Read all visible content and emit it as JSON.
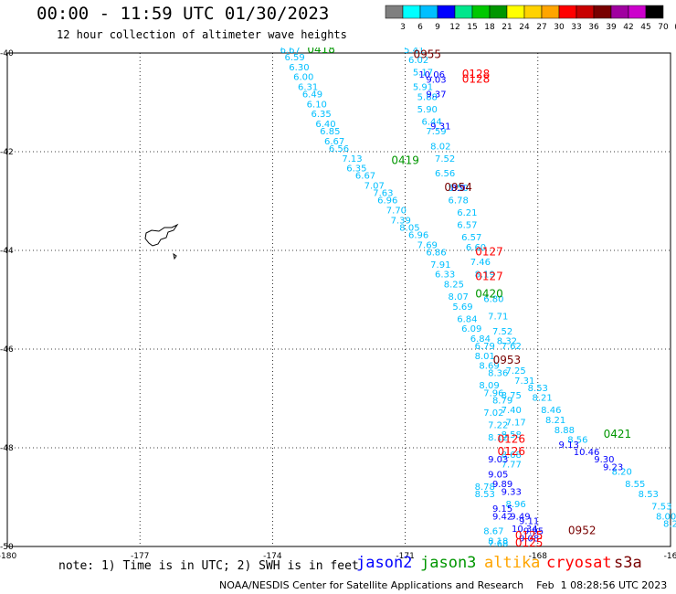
{
  "title": "00:00 - 11:59 UTC 01/30/2023",
  "subtitle": "12 hour collection of altimeter wave heights",
  "note": "note: 1) Time is in UTC; 2) SWH is in feet",
  "footer": "NOAA/NESDIS Center for Satellite Applications and Research    Feb  1 08:28:56 UTC 2023",
  "colorbar": {
    "ticks": [
      "3",
      "6",
      "9",
      "12",
      "15",
      "18",
      "21",
      "24",
      "27",
      "30",
      "33",
      "36",
      "39",
      "42",
      "45",
      "70",
      "(ft)"
    ],
    "colors": [
      "#7f7f7f",
      "#00ffff",
      "#00bfff",
      "#0000ff",
      "#00e68c",
      "#00c800",
      "#009600",
      "#ffff00",
      "#ffd200",
      "#ffa500",
      "#ff0000",
      "#c80000",
      "#780000",
      "#a000a0",
      "#cc00cc",
      "#000000"
    ]
  },
  "legend": [
    {
      "label": "jason2",
      "color": "#0000ff"
    },
    {
      "label": "jason3",
      "color": "#009600"
    },
    {
      "label": "altika",
      "color": "#ffa500"
    },
    {
      "label": "cryosat",
      "color": "#ff0000"
    },
    {
      "label": "s3a",
      "color": "#780000"
    }
  ],
  "chart_data": {
    "type": "scatter",
    "title": "00:00 - 11:59 UTC 01/30/2023",
    "subtitle": "12 hour collection of altimeter wave heights",
    "x_ticks": [
      "-180",
      "-177",
      "-174",
      "-171",
      "-168",
      "-16"
    ],
    "y_ticks": [
      "-40",
      "-42",
      "-44",
      "-46",
      "-48",
      "-50"
    ],
    "xlim": [
      -180,
      -165
    ],
    "ylim": [
      -50,
      -40
    ],
    "grid": true,
    "time_labels": [
      {
        "text": "0418",
        "lon": -172.9,
        "lat": -40.0,
        "color": "#009600"
      },
      {
        "text": "0955",
        "lon": -170.5,
        "lat": -40.1,
        "color": "#780000"
      },
      {
        "text": "0128",
        "lon": -169.4,
        "lat": -40.5,
        "color": "#ff0000"
      },
      {
        "text": "0128",
        "lon": -169.4,
        "lat": -40.6,
        "color": "#ff0000"
      },
      {
        "text": "0419",
        "lon": -171.0,
        "lat": -42.25,
        "color": "#009600"
      },
      {
        "text": "0954",
        "lon": -169.8,
        "lat": -42.8,
        "color": "#780000"
      },
      {
        "text": "0127",
        "lon": -169.1,
        "lat": -44.1,
        "color": "#ff0000"
      },
      {
        "text": "0127",
        "lon": -169.1,
        "lat": -44.6,
        "color": "#ff0000"
      },
      {
        "text": "0420",
        "lon": -169.1,
        "lat": -44.95,
        "color": "#009600"
      },
      {
        "text": "0953",
        "lon": -168.7,
        "lat": -46.3,
        "color": "#780000"
      },
      {
        "text": "0421",
        "lon": -166.2,
        "lat": -47.8,
        "color": "#009600"
      },
      {
        "text": "0126",
        "lon": -168.6,
        "lat": -47.9,
        "color": "#ff0000"
      },
      {
        "text": "0126",
        "lon": -168.6,
        "lat": -48.15,
        "color": "#ff0000"
      },
      {
        "text": "0952",
        "lon": -167.0,
        "lat": -49.75,
        "color": "#780000"
      },
      {
        "text": "0125",
        "lon": -168.2,
        "lat": -49.85,
        "color": "#ff0000"
      },
      {
        "text": "0125",
        "lon": -168.2,
        "lat": -50.0,
        "color": "#ff0000"
      }
    ],
    "series": [
      {
        "name": "jason3",
        "color": "#00bfff",
        "points": [
          {
            "lon": -173.6,
            "lat": -40.0,
            "v": "6.67"
          },
          {
            "lon": -173.5,
            "lat": -40.15,
            "v": "6.59"
          },
          {
            "lon": -173.4,
            "lat": -40.35,
            "v": "6.30"
          },
          {
            "lon": -173.3,
            "lat": -40.55,
            "v": "6.00"
          },
          {
            "lon": -173.2,
            "lat": -40.75,
            "v": "6.31"
          },
          {
            "lon": -173.1,
            "lat": -40.9,
            "v": "6.49"
          },
          {
            "lon": -173.0,
            "lat": -41.1,
            "v": "6.10"
          },
          {
            "lon": -172.9,
            "lat": -41.3,
            "v": "6.35"
          },
          {
            "lon": -172.8,
            "lat": -41.5,
            "v": "6.40"
          },
          {
            "lon": -172.7,
            "lat": -41.65,
            "v": "6.85"
          },
          {
            "lon": -172.6,
            "lat": -41.85,
            "v": "6.67"
          },
          {
            "lon": -172.5,
            "lat": -42.0,
            "v": "6.56"
          },
          {
            "lon": -172.2,
            "lat": -42.2,
            "v": "7.13"
          },
          {
            "lon": -172.1,
            "lat": -42.4,
            "v": "6.35"
          },
          {
            "lon": -171.9,
            "lat": -42.55,
            "v": "6.67"
          },
          {
            "lon": -171.7,
            "lat": -42.75,
            "v": "7.07"
          },
          {
            "lon": -171.5,
            "lat": -42.9,
            "v": "7.63"
          },
          {
            "lon": -171.4,
            "lat": -43.05,
            "v": "6.96"
          },
          {
            "lon": -171.2,
            "lat": -43.25,
            "v": "7.70"
          },
          {
            "lon": -171.1,
            "lat": -43.45,
            "v": "7.39"
          },
          {
            "lon": -170.9,
            "lat": -43.6,
            "v": "8.05"
          },
          {
            "lon": -170.7,
            "lat": -43.75,
            "v": "6.96"
          },
          {
            "lon": -170.5,
            "lat": -43.95,
            "v": "7.69"
          },
          {
            "lon": -170.3,
            "lat": -44.1,
            "v": "6.86"
          },
          {
            "lon": -170.2,
            "lat": -44.35,
            "v": "7.91"
          },
          {
            "lon": -170.1,
            "lat": -44.55,
            "v": "6.33"
          },
          {
            "lon": -169.9,
            "lat": -44.75,
            "v": "8.25"
          },
          {
            "lon": -169.8,
            "lat": -45.0,
            "v": "8.07"
          },
          {
            "lon": -169.7,
            "lat": -45.2,
            "v": "5.69"
          },
          {
            "lon": -169.6,
            "lat": -45.45,
            "v": "6.84"
          },
          {
            "lon": -169.5,
            "lat": -45.65,
            "v": "6.09"
          },
          {
            "lon": -169.3,
            "lat": -45.85,
            "v": "6.84"
          },
          {
            "lon": -169.2,
            "lat": -46.0,
            "v": "6.79"
          },
          {
            "lon": -169.2,
            "lat": -46.2,
            "v": "8.01"
          },
          {
            "lon": -169.1,
            "lat": -46.4,
            "v": "8.69"
          },
          {
            "lon": -168.9,
            "lat": -46.55,
            "v": "8.36"
          },
          {
            "lon": -169.1,
            "lat": -46.8,
            "v": "8.09"
          },
          {
            "lon": -169.0,
            "lat": -46.95,
            "v": "7.96"
          },
          {
            "lon": -168.8,
            "lat": -47.1,
            "v": "8.79"
          },
          {
            "lon": -169.0,
            "lat": -47.35,
            "v": "7.02"
          },
          {
            "lon": -168.9,
            "lat": -47.6,
            "v": "7.22"
          },
          {
            "lon": -168.9,
            "lat": -47.85,
            "v": "8.12"
          }
        ]
      },
      {
        "name": "cryosat",
        "color": "#00bfff",
        "points": [
          {
            "lon": -170.8,
            "lat": -40.0,
            "v": "5.41"
          },
          {
            "lon": -170.7,
            "lat": -40.2,
            "v": "6.02"
          },
          {
            "lon": -170.6,
            "lat": -40.45,
            "v": "5.17"
          },
          {
            "lon": -170.6,
            "lat": -40.75,
            "v": "5.91"
          },
          {
            "lon": -170.5,
            "lat": -40.95,
            "v": "5.88"
          },
          {
            "lon": -170.5,
            "lat": -41.2,
            "v": "5.90"
          },
          {
            "lon": -170.4,
            "lat": -41.45,
            "v": "6.44"
          },
          {
            "lon": -170.3,
            "lat": -41.65,
            "v": "7.59"
          },
          {
            "lon": -170.2,
            "lat": -41.95,
            "v": "8.02"
          },
          {
            "lon": -170.1,
            "lat": -42.2,
            "v": "7.52"
          },
          {
            "lon": -170.1,
            "lat": -42.5,
            "v": "6.56"
          },
          {
            "lon": -169.8,
            "lat": -42.8,
            "v": "5.50"
          },
          {
            "lon": -169.8,
            "lat": -43.05,
            "v": "6.78"
          },
          {
            "lon": -169.6,
            "lat": -43.3,
            "v": "6.21"
          },
          {
            "lon": -169.6,
            "lat": -43.55,
            "v": "6.57"
          },
          {
            "lon": -169.5,
            "lat": -43.8,
            "v": "6.57"
          },
          {
            "lon": -169.4,
            "lat": -44.0,
            "v": "6.60"
          },
          {
            "lon": -169.3,
            "lat": -44.3,
            "v": "7.46"
          },
          {
            "lon": -169.2,
            "lat": -44.55,
            "v": "8.19"
          },
          {
            "lon": -169.0,
            "lat": -45.05,
            "v": "6.80"
          },
          {
            "lon": -168.9,
            "lat": -45.4,
            "v": "7.71"
          },
          {
            "lon": -168.8,
            "lat": -45.7,
            "v": "7.52"
          },
          {
            "lon": -168.7,
            "lat": -45.9,
            "v": "8.32"
          },
          {
            "lon": -168.6,
            "lat": -46.0,
            "v": "7.62"
          },
          {
            "lon": -168.5,
            "lat": -46.5,
            "v": "7.25"
          },
          {
            "lon": -168.3,
            "lat": -46.7,
            "v": "7.31"
          },
          {
            "lon": -168.0,
            "lat": -46.85,
            "v": "8.53"
          },
          {
            "lon": -167.9,
            "lat": -47.05,
            "v": "8.21"
          },
          {
            "lon": -167.7,
            "lat": -47.3,
            "v": "8.46"
          },
          {
            "lon": -167.6,
            "lat": -47.5,
            "v": "8.21"
          },
          {
            "lon": -167.4,
            "lat": -47.7,
            "v": "8.88"
          },
          {
            "lon": -167.1,
            "lat": -47.9,
            "v": "8.56"
          },
          {
            "lon": -168.6,
            "lat": -47.0,
            "v": "8.75"
          },
          {
            "lon": -168.6,
            "lat": -47.3,
            "v": "7.40"
          },
          {
            "lon": -168.5,
            "lat": -47.55,
            "v": "7.17"
          },
          {
            "lon": -168.6,
            "lat": -47.8,
            "v": "8.58"
          },
          {
            "lon": -168.6,
            "lat": -48.2,
            "v": "8.68"
          },
          {
            "lon": -168.6,
            "lat": -48.4,
            "v": "7.77"
          },
          {
            "lon": -168.5,
            "lat": -49.2,
            "v": "8.96"
          },
          {
            "lon": -169.2,
            "lat": -49.0,
            "v": "8.53"
          },
          {
            "lon": -169.2,
            "lat": -48.85,
            "v": "8.78"
          },
          {
            "lon": -169.0,
            "lat": -49.75,
            "v": "8.67"
          },
          {
            "lon": -168.9,
            "lat": -49.95,
            "v": "8.18"
          },
          {
            "lon": -168.9,
            "lat": -50.0,
            "v": "7.68"
          },
          {
            "lon": -166.1,
            "lat": -48.55,
            "v": "8.20"
          },
          {
            "lon": -165.8,
            "lat": -48.8,
            "v": "8.55"
          },
          {
            "lon": -165.5,
            "lat": -49.0,
            "v": "8.53"
          },
          {
            "lon": -165.2,
            "lat": -49.25,
            "v": "7.53"
          },
          {
            "lon": -165.1,
            "lat": -49.45,
            "v": "8.00"
          },
          {
            "lon": -165.0,
            "lat": -49.6,
            "v": "8.2"
          }
        ]
      },
      {
        "name": "jason2",
        "color": "#0000ff",
        "points": [
          {
            "lon": -170.4,
            "lat": -40.5,
            "v": "10.06"
          },
          {
            "lon": -170.3,
            "lat": -40.6,
            "v": "9.03"
          },
          {
            "lon": -170.3,
            "lat": -40.9,
            "v": "9.37"
          },
          {
            "lon": -170.2,
            "lat": -41.55,
            "v": "9.31"
          },
          {
            "lon": -169.8,
            "lat": -42.8,
            "v": "8.9"
          },
          {
            "lon": -168.9,
            "lat": -48.3,
            "v": "9.03"
          },
          {
            "lon": -168.9,
            "lat": -48.6,
            "v": "9.05"
          },
          {
            "lon": -168.8,
            "lat": -48.8,
            "v": "9.89"
          },
          {
            "lon": -168.6,
            "lat": -48.95,
            "v": "9.33"
          },
          {
            "lon": -168.4,
            "lat": -49.45,
            "v": "9.49"
          },
          {
            "lon": -168.3,
            "lat": -49.7,
            "v": "10.34"
          },
          {
            "lon": -168.8,
            "lat": -49.3,
            "v": "9.15"
          },
          {
            "lon": -168.8,
            "lat": -49.45,
            "v": "9.42"
          },
          {
            "lon": -167.3,
            "lat": -48.0,
            "v": "9.13"
          },
          {
            "lon": -166.9,
            "lat": -48.15,
            "v": "10.46"
          },
          {
            "lon": -166.5,
            "lat": -48.3,
            "v": "9.30"
          },
          {
            "lon": -166.3,
            "lat": -48.45,
            "v": "9.23"
          },
          {
            "lon": -168.2,
            "lat": -49.55,
            "v": "9.11"
          },
          {
            "lon": -168.1,
            "lat": -49.75,
            "v": "9.95"
          },
          {
            "lon": -168.2,
            "lat": -49.9,
            "v": "9.08"
          }
        ]
      }
    ]
  }
}
